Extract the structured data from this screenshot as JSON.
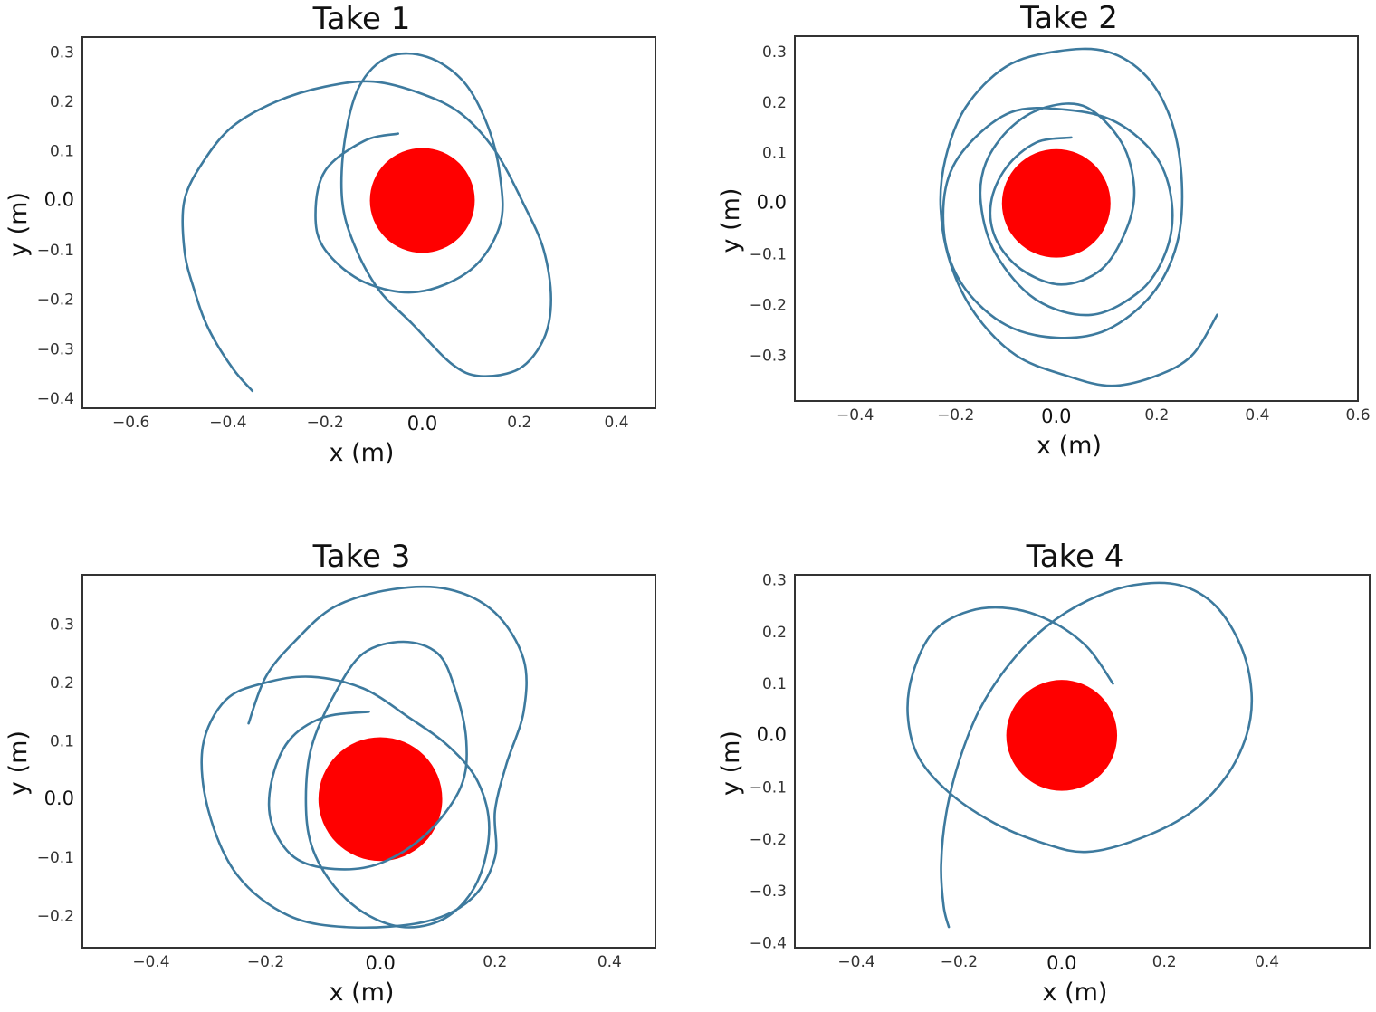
{
  "chart_data": [
    {
      "type": "line",
      "title": "Take 1",
      "xlabel": "x (m)",
      "ylabel": "y (m)",
      "xlim": [
        -0.7,
        0.48
      ],
      "ylim": [
        -0.42,
        0.33
      ],
      "xticks": [
        -0.6,
        -0.4,
        -0.2,
        0.0,
        0.2,
        0.4
      ],
      "yticks": [
        0.3,
        0.2,
        0.1,
        0.0,
        -0.1,
        -0.2,
        -0.3,
        -0.4
      ],
      "xtick_labels": [
        "−0.6",
        "−0.4",
        "−0.2",
        "0.0",
        "0.2",
        "0.4"
      ],
      "ytick_labels": [
        "0.3",
        "0.2",
        "0.1",
        "0.0",
        "−0.1",
        "−0.2",
        "−0.3",
        "−0.4"
      ],
      "grid": false,
      "obstacle": {
        "center": [
          0.0,
          0.0
        ],
        "radius": 0.108,
        "color": "#ff0000"
      },
      "line_color": "#3d7a9e",
      "trajectory": [
        [
          -0.05,
          0.135
        ],
        [
          -0.12,
          0.12
        ],
        [
          -0.2,
          0.06
        ],
        [
          -0.22,
          -0.03
        ],
        [
          -0.2,
          -0.1
        ],
        [
          -0.12,
          -0.165
        ],
        [
          -0.01,
          -0.185
        ],
        [
          0.1,
          -0.14
        ],
        [
          0.16,
          -0.05
        ],
        [
          0.16,
          0.05
        ],
        [
          0.135,
          0.15
        ],
        [
          0.085,
          0.24
        ],
        [
          0.01,
          0.29
        ],
        [
          -0.07,
          0.29
        ],
        [
          -0.13,
          0.23
        ],
        [
          -0.16,
          0.12
        ],
        [
          -0.165,
          0.0
        ],
        [
          -0.14,
          -0.09
        ],
        [
          -0.09,
          -0.18
        ],
        [
          -0.02,
          -0.25
        ],
        [
          0.06,
          -0.33
        ],
        [
          0.12,
          -0.355
        ],
        [
          0.2,
          -0.34
        ],
        [
          0.25,
          -0.28
        ],
        [
          0.265,
          -0.2
        ],
        [
          0.25,
          -0.1
        ],
        [
          0.21,
          -0.01
        ],
        [
          0.15,
          0.1
        ],
        [
          0.08,
          0.175
        ],
        [
          0.0,
          0.215
        ],
        [
          -0.1,
          0.24
        ],
        [
          -0.2,
          0.23
        ],
        [
          -0.3,
          0.2
        ],
        [
          -0.39,
          0.15
        ],
        [
          -0.45,
          0.08
        ],
        [
          -0.49,
          0.0
        ],
        [
          -0.49,
          -0.1
        ],
        [
          -0.47,
          -0.18
        ],
        [
          -0.44,
          -0.26
        ],
        [
          -0.39,
          -0.34
        ],
        [
          -0.35,
          -0.385
        ]
      ]
    },
    {
      "type": "line",
      "title": "Take 2",
      "xlabel": "x (m)",
      "ylabel": "y (m)",
      "xlim": [
        -0.52,
        0.6
      ],
      "ylim": [
        -0.39,
        0.33
      ],
      "xticks": [
        -0.4,
        -0.2,
        0.0,
        0.2,
        0.4,
        0.6
      ],
      "yticks": [
        0.3,
        0.2,
        0.1,
        0.0,
        -0.1,
        -0.2,
        -0.3
      ],
      "xtick_labels": [
        "−0.4",
        "−0.2",
        "0.0",
        "0.2",
        "0.4",
        "0.6"
      ],
      "ytick_labels": [
        "0.3",
        "0.2",
        "0.1",
        "0.0",
        "−0.1",
        "−0.2",
        "−0.3"
      ],
      "grid": false,
      "obstacle": {
        "center": [
          0.0,
          0.0
        ],
        "radius": 0.108,
        "color": "#ff0000"
      },
      "line_color": "#3d7a9e",
      "trajectory": [
        [
          0.03,
          0.13
        ],
        [
          -0.04,
          0.12
        ],
        [
          -0.1,
          0.07
        ],
        [
          -0.13,
          0.0
        ],
        [
          -0.12,
          -0.07
        ],
        [
          -0.07,
          -0.13
        ],
        [
          0.01,
          -0.16
        ],
        [
          0.09,
          -0.13
        ],
        [
          0.14,
          -0.05
        ],
        [
          0.155,
          0.03
        ],
        [
          0.13,
          0.12
        ],
        [
          0.06,
          0.19
        ],
        [
          -0.02,
          0.19
        ],
        [
          -0.09,
          0.15
        ],
        [
          -0.14,
          0.08
        ],
        [
          -0.15,
          0.0
        ],
        [
          -0.12,
          -0.1
        ],
        [
          -0.04,
          -0.19
        ],
        [
          0.07,
          -0.22
        ],
        [
          0.17,
          -0.17
        ],
        [
          0.22,
          -0.09
        ],
        [
          0.23,
          0.0
        ],
        [
          0.2,
          0.09
        ],
        [
          0.12,
          0.16
        ],
        [
          0.02,
          0.185
        ],
        [
          -0.09,
          0.18
        ],
        [
          -0.18,
          0.11
        ],
        [
          -0.22,
          0.03
        ],
        [
          -0.22,
          -0.08
        ],
        [
          -0.18,
          -0.17
        ],
        [
          -0.1,
          -0.24
        ],
        [
          0.0,
          -0.265
        ],
        [
          0.1,
          -0.25
        ],
        [
          0.19,
          -0.18
        ],
        [
          0.24,
          -0.08
        ],
        [
          0.25,
          0.04
        ],
        [
          0.23,
          0.16
        ],
        [
          0.18,
          0.25
        ],
        [
          0.1,
          0.3
        ],
        [
          0.0,
          0.3
        ],
        [
          -0.1,
          0.27
        ],
        [
          -0.18,
          0.19
        ],
        [
          -0.22,
          0.09
        ],
        [
          -0.23,
          -0.01
        ],
        [
          -0.21,
          -0.12
        ],
        [
          -0.16,
          -0.22
        ],
        [
          -0.08,
          -0.3
        ],
        [
          0.02,
          -0.34
        ],
        [
          0.11,
          -0.36
        ],
        [
          0.2,
          -0.34
        ],
        [
          0.27,
          -0.3
        ],
        [
          0.32,
          -0.22
        ]
      ]
    },
    {
      "type": "line",
      "title": "Take 3",
      "xlabel": "x (m)",
      "ylabel": "y (m)",
      "xlim": [
        -0.52,
        0.48
      ],
      "ylim": [
        -0.255,
        0.385
      ],
      "xticks": [
        -0.4,
        -0.2,
        0.0,
        0.2,
        0.4
      ],
      "yticks": [
        0.3,
        0.2,
        0.1,
        0.0,
        -0.1,
        -0.2
      ],
      "xtick_labels": [
        "−0.4",
        "−0.2",
        "0.0",
        "0.2",
        "0.4"
      ],
      "ytick_labels": [
        "0.3",
        "0.2",
        "0.1",
        "0.0",
        "−0.1",
        "−0.2"
      ],
      "grid": false,
      "obstacle": {
        "center": [
          0.0,
          0.0
        ],
        "radius": 0.108,
        "color": "#ff0000"
      },
      "line_color": "#3d7a9e",
      "trajectory": [
        [
          -0.02,
          0.15
        ],
        [
          -0.1,
          0.14
        ],
        [
          -0.16,
          0.1
        ],
        [
          -0.19,
          0.03
        ],
        [
          -0.19,
          -0.04
        ],
        [
          -0.15,
          -0.1
        ],
        [
          -0.08,
          -0.12
        ],
        [
          0.0,
          -0.11
        ],
        [
          0.08,
          -0.06
        ],
        [
          0.14,
          0.02
        ],
        [
          0.15,
          0.1
        ],
        [
          0.13,
          0.19
        ],
        [
          0.1,
          0.25
        ],
        [
          0.04,
          0.27
        ],
        [
          -0.03,
          0.25
        ],
        [
          -0.08,
          0.18
        ],
        [
          -0.12,
          0.09
        ],
        [
          -0.13,
          0.0
        ],
        [
          -0.12,
          -0.08
        ],
        [
          -0.08,
          -0.15
        ],
        [
          -0.02,
          -0.2
        ],
        [
          0.05,
          -0.22
        ],
        [
          0.12,
          -0.2
        ],
        [
          0.17,
          -0.14
        ],
        [
          0.19,
          -0.05
        ],
        [
          0.17,
          0.03
        ],
        [
          0.12,
          0.09
        ],
        [
          0.05,
          0.14
        ],
        [
          -0.03,
          0.19
        ],
        [
          -0.12,
          0.21
        ],
        [
          -0.2,
          0.2
        ],
        [
          -0.27,
          0.17
        ],
        [
          -0.31,
          0.09
        ],
        [
          -0.3,
          -0.02
        ],
        [
          -0.25,
          -0.13
        ],
        [
          -0.16,
          -0.2
        ],
        [
          -0.05,
          -0.22
        ],
        [
          0.08,
          -0.21
        ],
        [
          0.16,
          -0.17
        ],
        [
          0.2,
          -0.1
        ],
        [
          0.2,
          -0.02
        ],
        [
          0.22,
          0.06
        ],
        [
          0.25,
          0.15
        ],
        [
          0.25,
          0.24
        ],
        [
          0.2,
          0.32
        ],
        [
          0.12,
          0.36
        ],
        [
          0.02,
          0.36
        ],
        [
          -0.08,
          0.33
        ],
        [
          -0.15,
          0.27
        ],
        [
          -0.2,
          0.21
        ],
        [
          -0.23,
          0.13
        ]
      ]
    },
    {
      "type": "line",
      "title": "Take 4",
      "xlabel": "x (m)",
      "ylabel": "y (m)",
      "xlim": [
        -0.52,
        0.6
      ],
      "ylim": [
        -0.41,
        0.31
      ],
      "xticks": [
        -0.4,
        -0.2,
        0.0,
        0.2,
        0.4
      ],
      "yticks": [
        0.3,
        0.2,
        0.1,
        0.0,
        -0.1,
        -0.2,
        -0.3,
        -0.4
      ],
      "xtick_labels": [
        "−0.4",
        "−0.2",
        "0.0",
        "0.2",
        "0.4"
      ],
      "ytick_labels": [
        "0.3",
        "0.2",
        "0.1",
        "0.0",
        "−0.1",
        "−0.2",
        "−0.3",
        "−0.4"
      ],
      "grid": false,
      "obstacle": {
        "center": [
          0.0,
          0.0
        ],
        "radius": 0.108,
        "color": "#ff0000"
      },
      "line_color": "#3d7a9e",
      "trajectory": [
        [
          0.1,
          0.1
        ],
        [
          0.05,
          0.17
        ],
        [
          -0.02,
          0.22
        ],
        [
          -0.1,
          0.245
        ],
        [
          -0.18,
          0.24
        ],
        [
          -0.25,
          0.2
        ],
        [
          -0.29,
          0.12
        ],
        [
          -0.3,
          0.04
        ],
        [
          -0.28,
          -0.04
        ],
        [
          -0.22,
          -0.11
        ],
        [
          -0.13,
          -0.17
        ],
        [
          -0.03,
          -0.21
        ],
        [
          0.05,
          -0.225
        ],
        [
          0.15,
          -0.2
        ],
        [
          0.25,
          -0.15
        ],
        [
          0.32,
          -0.08
        ],
        [
          0.36,
          0.0
        ],
        [
          0.37,
          0.08
        ],
        [
          0.35,
          0.17
        ],
        [
          0.3,
          0.25
        ],
        [
          0.23,
          0.29
        ],
        [
          0.14,
          0.29
        ],
        [
          0.05,
          0.26
        ],
        [
          -0.03,
          0.21
        ],
        [
          -0.1,
          0.14
        ],
        [
          -0.16,
          0.05
        ],
        [
          -0.2,
          -0.05
        ],
        [
          -0.225,
          -0.15
        ],
        [
          -0.235,
          -0.25
        ],
        [
          -0.23,
          -0.33
        ],
        [
          -0.22,
          -0.37
        ]
      ]
    }
  ]
}
